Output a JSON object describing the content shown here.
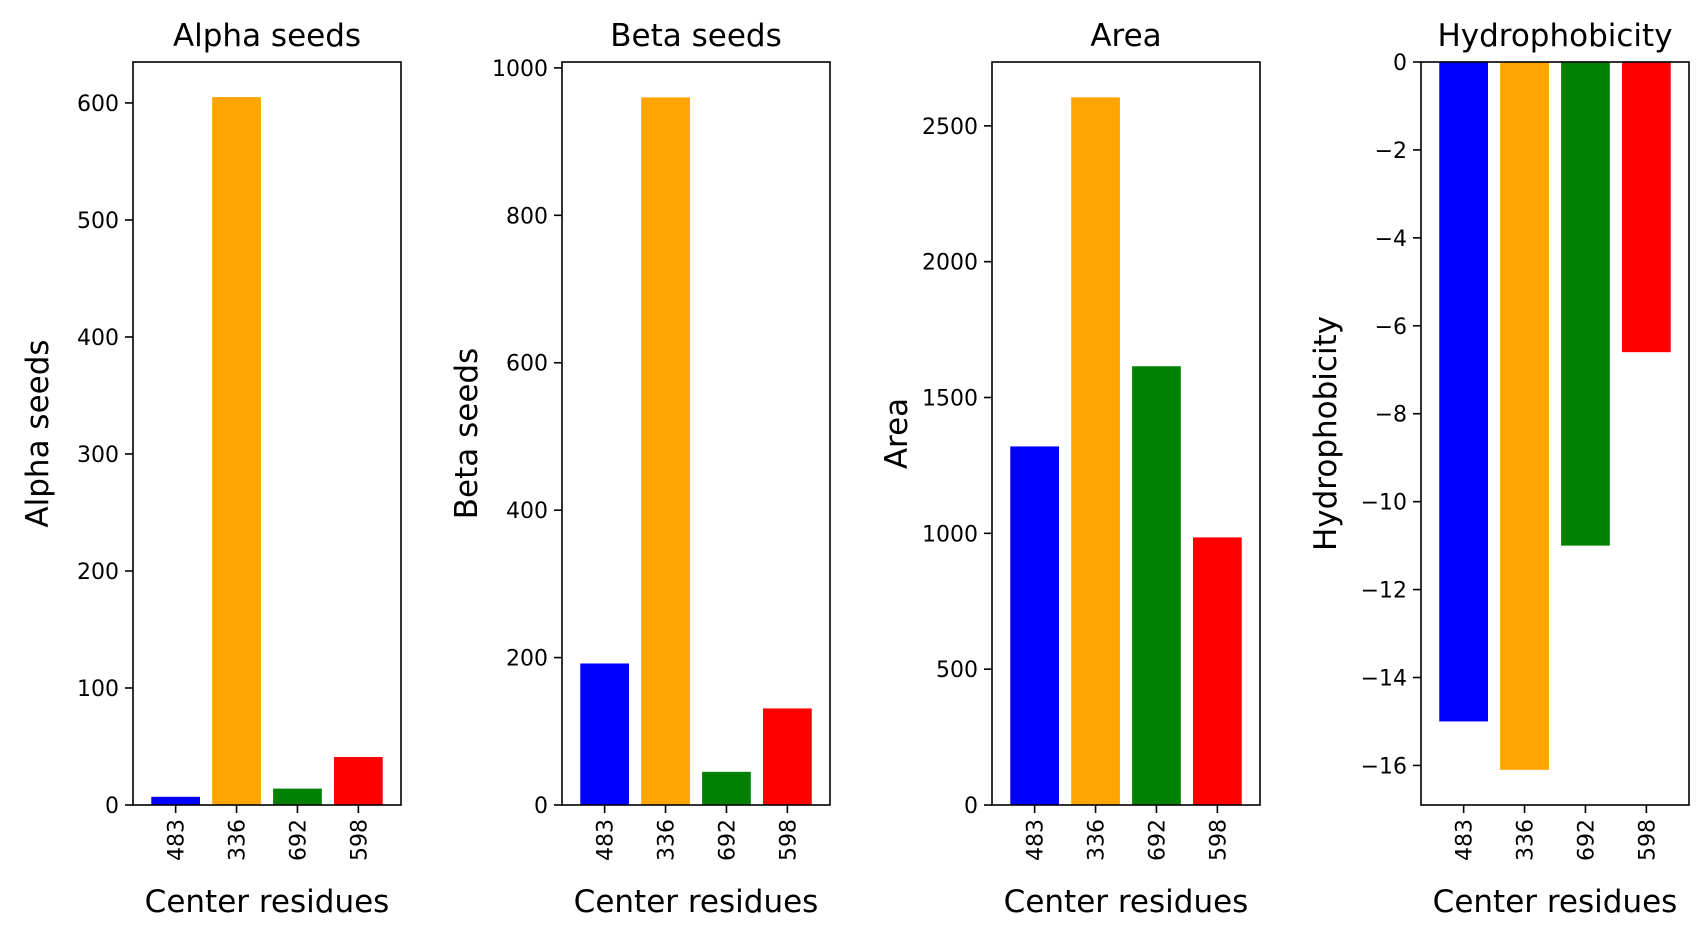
{
  "chart_data": [
    {
      "type": "bar",
      "title": "Alpha seeds",
      "xlabel": "Center residues",
      "ylabel": "Alpha seeds",
      "categories": [
        "483",
        "336",
        "692",
        "598"
      ],
      "values": [
        7,
        605,
        14,
        41
      ],
      "colors": [
        "#0000ff",
        "#ffa500",
        "#008000",
        "#ff0000"
      ],
      "ylim": [
        0,
        635
      ],
      "yticks": [
        0,
        100,
        200,
        300,
        400,
        500,
        600
      ],
      "grid": false
    },
    {
      "type": "bar",
      "title": "Beta seeds",
      "xlabel": "Center residues",
      "ylabel": "Beta seeds",
      "categories": [
        "483",
        "336",
        "692",
        "598"
      ],
      "values": [
        192,
        960,
        45,
        131
      ],
      "colors": [
        "#0000ff",
        "#ffa500",
        "#008000",
        "#ff0000"
      ],
      "ylim": [
        0,
        1008
      ],
      "yticks": [
        0,
        200,
        400,
        600,
        800,
        1000
      ],
      "grid": false
    },
    {
      "type": "bar",
      "title": "Area",
      "xlabel": "Center residues",
      "ylabel": "Area",
      "categories": [
        "483",
        "336",
        "692",
        "598"
      ],
      "values": [
        1320,
        2605,
        1615,
        985
      ],
      "colors": [
        "#0000ff",
        "#ffa500",
        "#008000",
        "#ff0000"
      ],
      "ylim": [
        0,
        2735
      ],
      "yticks": [
        0,
        500,
        1000,
        1500,
        2000,
        2500
      ],
      "grid": false
    },
    {
      "type": "bar",
      "title": "Hydrophobicity",
      "xlabel": "Center residues",
      "ylabel": "Hydrophobicity",
      "categories": [
        "483",
        "336",
        "692",
        "598"
      ],
      "values": [
        -15.0,
        -16.1,
        -11.0,
        -6.6
      ],
      "colors": [
        "#0000ff",
        "#ffa500",
        "#008000",
        "#ff0000"
      ],
      "ylim": [
        -16.9,
        0
      ],
      "yticks": [
        0,
        -2,
        -4,
        -6,
        -8,
        -10,
        -12,
        -14,
        -16
      ],
      "grid": false
    }
  ]
}
